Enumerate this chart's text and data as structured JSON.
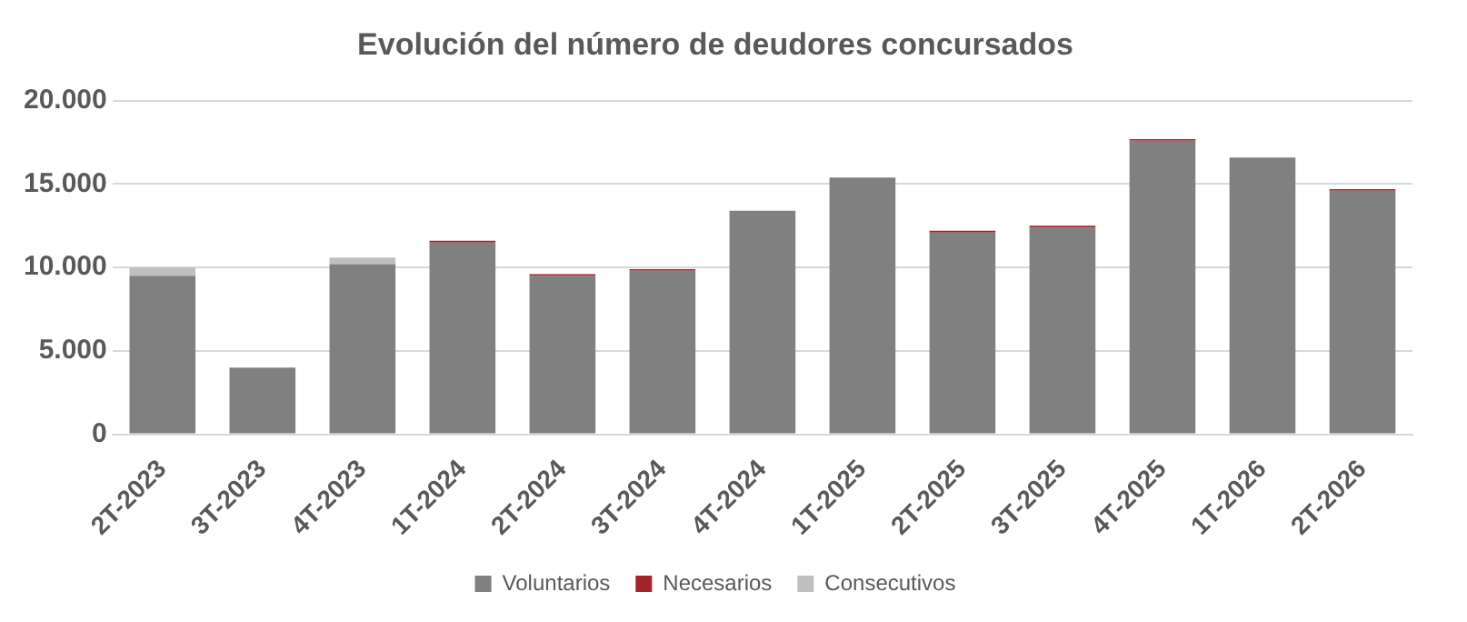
{
  "chart_data": {
    "type": "bar",
    "title": "Evolución del número de deudores concursados",
    "stacked": true,
    "categories": [
      "2T-2023",
      "3T-2023",
      "4T-2023",
      "1T-2024",
      "2T-2024",
      "3T-2024",
      "4T-2024",
      "1T-2025",
      "2T-2025",
      "3T-2025",
      "4T-2025",
      "1T-2026",
      "2T-2026"
    ],
    "series": [
      {
        "name": "Voluntarios",
        "color": "#808080",
        "values": [
          9500,
          4000,
          10200,
          11500,
          9500,
          9800,
          13400,
          15400,
          12100,
          12400,
          17600,
          16600,
          14600
        ]
      },
      {
        "name": "Necesarios",
        "color": "#a5232d",
        "values": [
          0,
          0,
          0,
          100,
          100,
          100,
          0,
          0,
          100,
          100,
          100,
          0,
          100
        ]
      },
      {
        "name": "Consecutivos",
        "color": "#bfbfbf",
        "values": [
          500,
          null,
          400,
          0,
          0,
          0,
          0,
          0,
          0,
          0,
          0,
          0,
          0
        ]
      }
    ],
    "ylim": [
      0,
      20000
    ],
    "yticks": [
      {
        "value": 0,
        "label": "0"
      },
      {
        "value": 5000,
        "label": "5.000"
      },
      {
        "value": 10000,
        "label": "10.000"
      },
      {
        "value": 15000,
        "label": "15.000"
      },
      {
        "value": 20000,
        "label": "20.000"
      }
    ],
    "grid": "y",
    "legend": "bottom"
  }
}
